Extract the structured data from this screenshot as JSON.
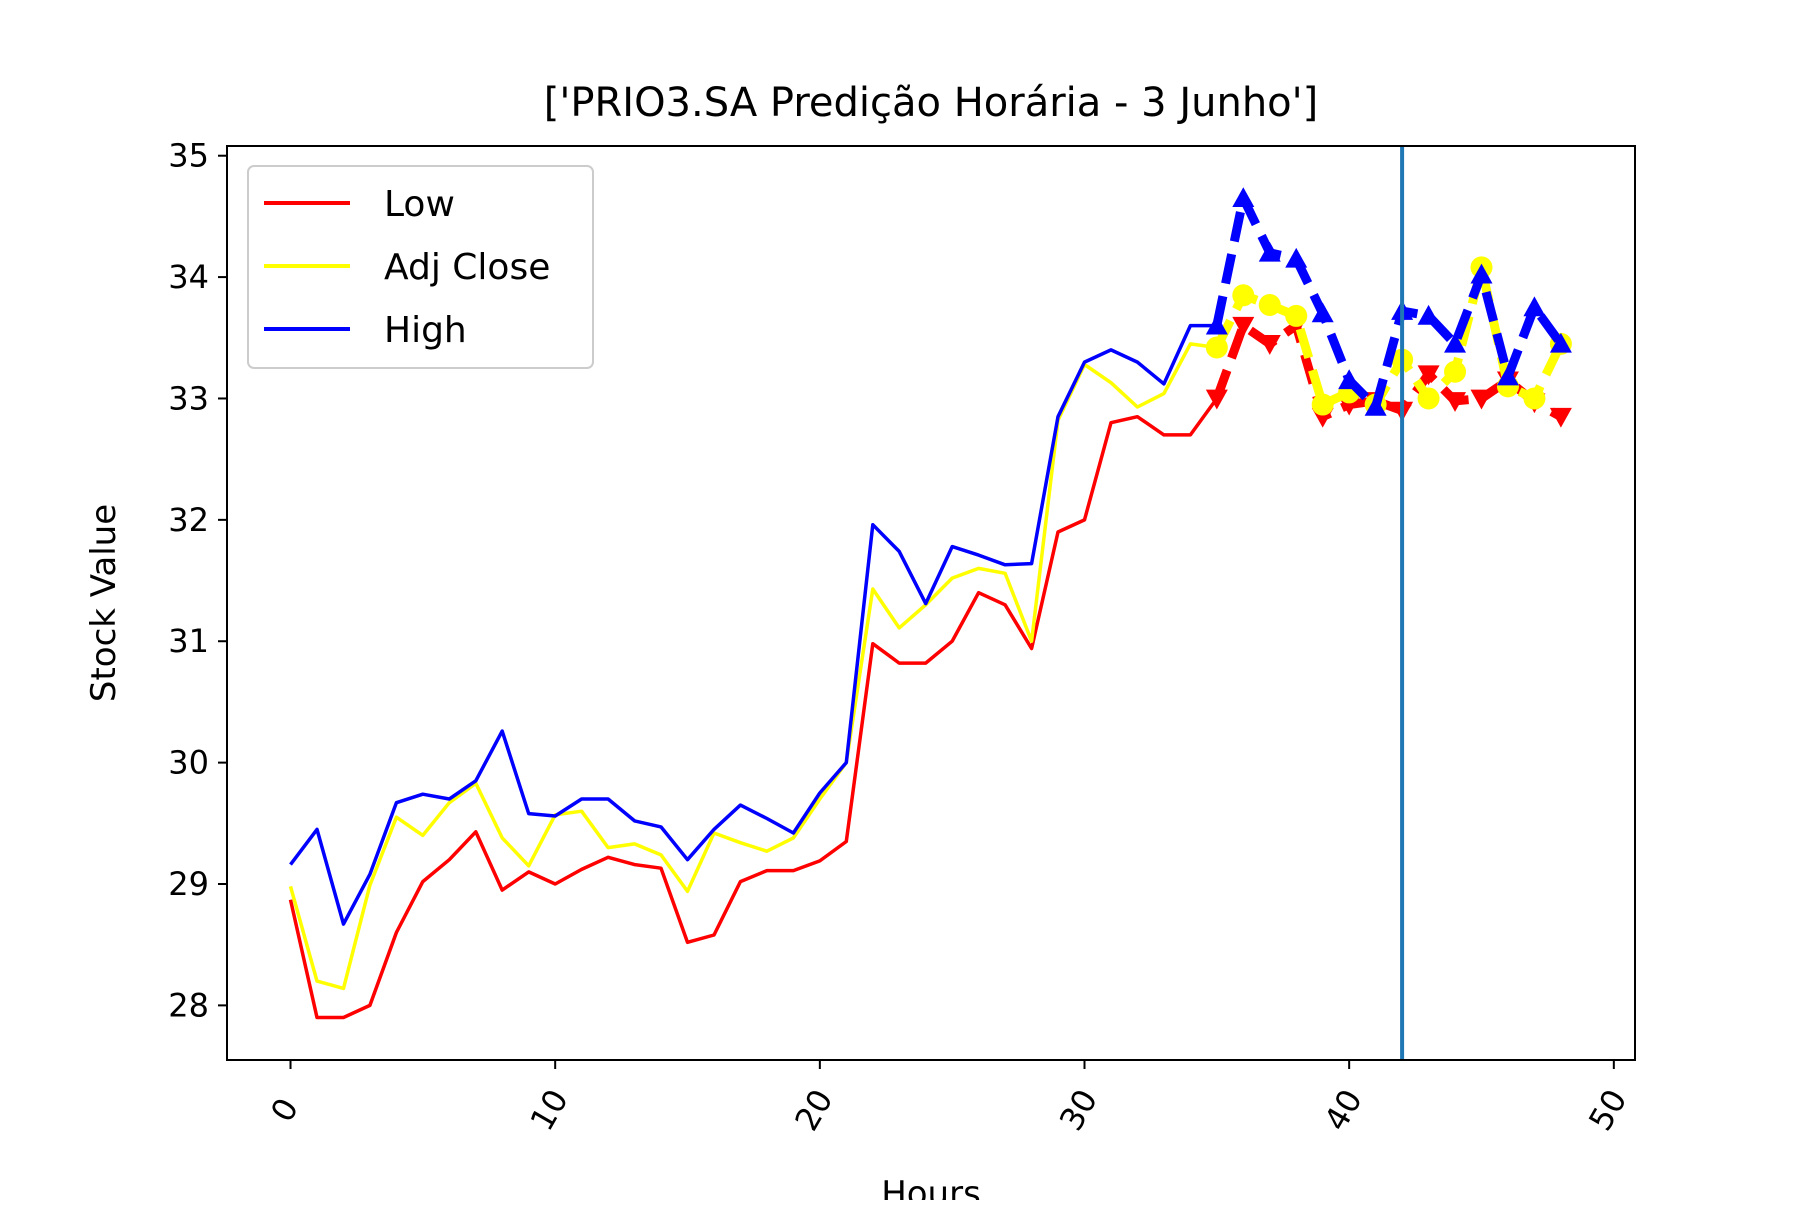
{
  "chart_data": {
    "type": "line",
    "title": "['PRIO3.SA Predição Horária - 3 Junho']",
    "xlabel": "Hours",
    "ylabel": "Stock Value",
    "xlim": [
      -2.4,
      50.8
    ],
    "ylim": [
      27.55,
      35.08
    ],
    "xticks": [
      0,
      10,
      20,
      30,
      40,
      50
    ],
    "yticks": [
      28,
      29,
      30,
      31,
      32,
      33,
      34,
      35
    ],
    "xtick_rotation_deg": -60,
    "grid": false,
    "legend_position": "upper-left",
    "vline": {
      "x": 42,
      "color": "#1f77b4"
    },
    "series": [
      {
        "name": "Low",
        "color": "#ff0000",
        "style": "solid",
        "x": [
          0,
          1,
          2,
          3,
          4,
          5,
          6,
          7,
          8,
          9,
          10,
          11,
          12,
          13,
          14,
          15,
          16,
          17,
          18,
          19,
          20,
          21,
          22,
          23,
          24,
          25,
          26,
          27,
          28,
          29,
          30,
          31,
          32,
          33,
          34,
          35
        ],
        "values": [
          28.87,
          27.9,
          27.9,
          28.0,
          28.6,
          29.02,
          29.2,
          29.43,
          28.95,
          29.1,
          29.0,
          29.12,
          29.22,
          29.16,
          29.13,
          28.52,
          28.58,
          29.02,
          29.11,
          29.11,
          29.19,
          29.35,
          30.98,
          30.82,
          30.82,
          31.0,
          31.4,
          31.3,
          30.94,
          31.9,
          32.0,
          32.8,
          32.85,
          32.7,
          32.7,
          33.0
        ]
      },
      {
        "name": "Adj Close",
        "color": "#ffff00",
        "style": "solid",
        "x": [
          0,
          1,
          2,
          3,
          4,
          5,
          6,
          7,
          8,
          9,
          10,
          11,
          12,
          13,
          14,
          15,
          16,
          17,
          18,
          19,
          20,
          21,
          22,
          23,
          24,
          25,
          26,
          27,
          28,
          29,
          30,
          31,
          32,
          33,
          34,
          35
        ],
        "values": [
          28.98,
          28.2,
          28.14,
          28.99,
          29.55,
          29.4,
          29.67,
          29.83,
          29.38,
          29.15,
          29.57,
          29.6,
          29.3,
          29.33,
          29.24,
          28.94,
          29.42,
          29.34,
          29.27,
          29.38,
          29.7,
          30.0,
          31.43,
          31.11,
          31.3,
          31.52,
          31.6,
          31.56,
          31.0,
          32.82,
          33.28,
          33.13,
          32.93,
          33.04,
          33.45,
          33.42
        ]
      },
      {
        "name": "High",
        "color": "#0000ff",
        "style": "solid",
        "x": [
          0,
          1,
          2,
          3,
          4,
          5,
          6,
          7,
          8,
          9,
          10,
          11,
          12,
          13,
          14,
          15,
          16,
          17,
          18,
          19,
          20,
          21,
          22,
          23,
          24,
          25,
          26,
          27,
          28,
          29,
          30,
          31,
          32,
          33,
          34,
          35
        ],
        "values": [
          29.16,
          29.45,
          28.67,
          29.08,
          29.67,
          29.74,
          29.7,
          29.85,
          30.26,
          29.58,
          29.56,
          29.7,
          29.7,
          29.52,
          29.47,
          29.2,
          29.45,
          29.65,
          29.54,
          29.42,
          29.75,
          30.0,
          31.96,
          31.74,
          31.31,
          31.78,
          31.71,
          31.63,
          31.64,
          32.85,
          33.3,
          33.4,
          33.3,
          33.12,
          33.6,
          33.6
        ]
      },
      {
        "name": "",
        "color": "#ff0000",
        "style": "dashed",
        "marker": "triangle-down",
        "x": [
          35,
          36,
          37,
          38,
          39,
          40,
          41,
          42,
          43,
          44,
          45,
          46,
          47,
          48
        ],
        "values": [
          33.0,
          33.6,
          33.45,
          33.6,
          32.85,
          32.95,
          32.98,
          32.9,
          33.2,
          32.98,
          33.0,
          33.15,
          32.97,
          32.85
        ]
      },
      {
        "name": "",
        "color": "#ffff00",
        "style": "dashed",
        "marker": "circle",
        "x": [
          35,
          36,
          37,
          38,
          39,
          40,
          41,
          42,
          43,
          44,
          45,
          46,
          47,
          48
        ],
        "values": [
          33.42,
          33.85,
          33.77,
          33.68,
          32.95,
          33.05,
          32.95,
          33.32,
          33.0,
          33.22,
          34.08,
          33.1,
          33.0,
          33.45
        ]
      },
      {
        "name": "",
        "color": "#0000ff",
        "style": "dashed",
        "marker": "triangle-up",
        "x": [
          35,
          36,
          37,
          38,
          39,
          40,
          41,
          42,
          43,
          44,
          45,
          46,
          47,
          48
        ],
        "values": [
          33.6,
          34.65,
          34.2,
          34.15,
          33.7,
          33.15,
          32.93,
          33.72,
          33.68,
          33.45,
          34.02,
          33.18,
          33.75,
          33.45
        ]
      }
    ]
  }
}
